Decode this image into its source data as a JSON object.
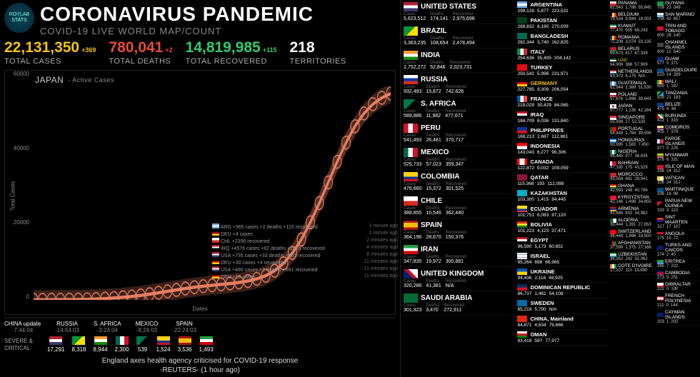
{
  "logo_text": "ROYLAB STATS",
  "title": "CORONAVIRUS PANDEMIC",
  "subtitle": "COVID-19 LIVE WORLD MAP/COUNT",
  "colors": {
    "cases": "#f1c40f",
    "deaths": "#e74c3c",
    "recovered": "#2ecc71",
    "territories": "#ffffff",
    "chart_accent": "#e67e63",
    "bg": "#000000",
    "text": "#ffffff",
    "muted": "#888888"
  },
  "stats": {
    "cases": {
      "value": "22,131,350",
      "delta": "+369",
      "label": "TOTAL CASES"
    },
    "deaths": {
      "value": "780,041",
      "delta": "+2",
      "label": "TOTAL DEATHS"
    },
    "recovered": {
      "value": "14,819,985",
      "delta": "+115",
      "label": "TOTAL RECOVERED"
    },
    "territories": {
      "value": "218",
      "delta": "",
      "label": "TERRITORIES"
    }
  },
  "chart": {
    "type": "line",
    "title": "JAPAN",
    "subtitle": "- Active Cases",
    "xlabel": "Dates",
    "ylabel": "Total Cases",
    "ylim": [
      0,
      60000
    ],
    "yticks": [
      0,
      20000,
      40000,
      60000
    ],
    "line_color": "#e67e63",
    "marker": "o",
    "marker_size": 6,
    "line_width": 3,
    "background": "#0a0a0a",
    "x": [
      0,
      5,
      10,
      15,
      20,
      25,
      30,
      35,
      40,
      45,
      50,
      55,
      60,
      65,
      70,
      75,
      80,
      85,
      90,
      95,
      100,
      105,
      110,
      115,
      120,
      125,
      130,
      135,
      140,
      145,
      150,
      155,
      160,
      165,
      170,
      175,
      180,
      185,
      190,
      195,
      200
    ],
    "y": [
      20,
      30,
      45,
      60,
      80,
      110,
      160,
      240,
      360,
      520,
      720,
      960,
      1250,
      1600,
      2000,
      2400,
      2800,
      3200,
      3550,
      3850,
      4100,
      4350,
      4600,
      4900,
      5300,
      5900,
      6800,
      8200,
      10300,
      13200,
      17000,
      21800,
      27200,
      33000,
      38800,
      44200,
      48800,
      52400,
      55000,
      56800,
      58000
    ]
  },
  "updates": [
    {
      "c": "CHINA update",
      "t": "-7:44:04"
    },
    {
      "c": "RUSSIA",
      "t": "-14:54:03"
    },
    {
      "c": "S. AFRICA",
      "t": "-3:24:04"
    },
    {
      "c": "MEXICO",
      "t": "-8:24:03"
    },
    {
      "c": "SPAIN",
      "t": "-22:24:03"
    }
  ],
  "severe_label": "SEVERE & CRITICAL",
  "severe": [
    {
      "flag": "f-us",
      "n": "17,291"
    },
    {
      "flag": "f-br",
      "n": "8,318"
    },
    {
      "flag": "f-in",
      "n": "8,944"
    },
    {
      "flag": "f-mx",
      "n": "2,300"
    },
    {
      "flag": "f-za",
      "n": "539"
    },
    {
      "flag": "f-co",
      "n": "1,524"
    },
    {
      "flag": "f-es",
      "n": "3,536"
    },
    {
      "flag": "f-ir",
      "n": "1,493"
    }
  ],
  "liveFeed": [
    {
      "flag": "f-ar",
      "t": "ARG +365 cases +2 deaths +115 recovered",
      "ago": "1 minute ago"
    },
    {
      "flag": "f-de",
      "t": "DEU +4 cases",
      "ago": "1 minute ago"
    },
    {
      "flag": "f-cl",
      "t": "CHL +2356 recovered",
      "ago": "2 minutes ago"
    },
    {
      "flag": "f-iq",
      "t": "IRQ +4576 cases +82 deaths +2819 recovered",
      "ago": "4 minutes ago"
    },
    {
      "flag": "f-us",
      "t": "USA +795 cases +33 deaths +861 recovered",
      "ago": "8 minutes ago"
    },
    {
      "flag": "f-de",
      "t": "DEU +30 cases +4 recovered",
      "ago": "11 minutes ago"
    },
    {
      "flag": "f-us",
      "t": "USA +480 cases +2 deaths +861 recovered",
      "ago": "11 minutes ago"
    },
    {
      "flag": "f-de",
      "t": "DEU +16 cases",
      "ago": "11 minutes ago"
    }
  ],
  "news": {
    "headline": "England axes health agency criticised for COVID-19 response",
    "source": "-REUTERS- (1 hour ago)"
  },
  "headersCompact": [
    "Cases",
    "Deaths",
    "Recovered"
  ],
  "col1": [
    {
      "flag": "f-us",
      "name": "UNITED STATES",
      "c": "5,623,512",
      "d": "174,141",
      "r": "2,975,698"
    },
    {
      "flag": "f-br",
      "name": "BRAZIL",
      "c": "3,363,235",
      "d": "108,654",
      "r": "2,478,494"
    },
    {
      "flag": "f-in",
      "name": "INDIA",
      "c": "2,752,272",
      "d": "52,846",
      "r": "2,023,731"
    },
    {
      "flag": "f-ru",
      "name": "RUSSIA",
      "c": "932,493",
      "d": "15,872",
      "r": "742,628"
    },
    {
      "flag": "f-za",
      "name": "S. AFRICA",
      "c": "589,886",
      "d": "11,982",
      "r": "477,671"
    },
    {
      "flag": "f-pe",
      "name": "PERU",
      "c": "541,493",
      "d": "26,481",
      "r": "370,717"
    },
    {
      "flag": "f-mx",
      "name": "MEXICO",
      "c": "525,733",
      "d": "57,023",
      "r": "359,347"
    },
    {
      "flag": "f-co",
      "name": "COLOMBIA",
      "c": "476,660",
      "d": "15,372",
      "r": "301,525"
    },
    {
      "flag": "f-cl",
      "name": "CHILE",
      "c": "388,855",
      "d": "10,546",
      "r": "362,440"
    },
    {
      "flag": "f-es",
      "name": "SPAIN",
      "c": "364,196",
      "d": "28,670",
      "r": "150,376"
    },
    {
      "flag": "f-ir",
      "name": "IRAN",
      "c": "347,835",
      "d": "19,972",
      "r": "300,881"
    },
    {
      "flag": "f-gb",
      "name": "UNITED KINGDOM",
      "c": "320,286",
      "d": "41,381",
      "r": "N/A"
    },
    {
      "flag": "f-sa",
      "name": "SAUDI ARABIA",
      "c": "301,323",
      "d": "3,470",
      "r": "272,911"
    }
  ],
  "col2": [
    {
      "flag": "f-ar",
      "name": "ARGENTINA",
      "c": "299,126",
      "d": "5,877",
      "r": "223,531"
    },
    {
      "flag": "f-pk",
      "name": "PAKISTAN",
      "c": "289,832",
      "d": "6,190",
      "r": "270,009"
    },
    {
      "flag": "f-bd",
      "name": "BANGLADESH",
      "c": "282,344",
      "d": "3,740",
      "r": "162,825"
    },
    {
      "flag": "f-it",
      "name": "ITALY",
      "c": "254,636",
      "d": "35,405",
      "r": "204,142"
    },
    {
      "flag": "f-tr",
      "name": "TURKEY",
      "c": "250,542",
      "d": "5,996",
      "r": "231,971"
    },
    {
      "flag": "f-de",
      "name": "GERMANY",
      "c": "227,785",
      "d": "9,309",
      "r": "206,054",
      "hi": true
    },
    {
      "flag": "f-fr",
      "name": "FRANCE",
      "c": "219,029",
      "d": "30,429",
      "r": "84,065"
    },
    {
      "flag": "f-iq",
      "name": "IRAQ",
      "c": "184,709",
      "d": "6,036",
      "r": "131,840"
    },
    {
      "flag": "f-ph",
      "name": "PHILIPPINES",
      "c": "169,213",
      "d": "2,687",
      "r": "112,861"
    },
    {
      "flag": "f-id",
      "name": "INDONESIA",
      "c": "143,043",
      "d": "6,277",
      "r": "96,306"
    },
    {
      "flag": "f-ca",
      "name": "CANADA",
      "c": "122,872",
      "d": "9,032",
      "r": "109,059"
    },
    {
      "flag": "f-qa",
      "name": "QATAR",
      "c": "115,368",
      "d": "193",
      "r": "112,088"
    },
    {
      "flag": "f-kz",
      "name": "KAZAKHSTAN",
      "c": "103,300",
      "d": "1,415",
      "r": "84,445"
    },
    {
      "flag": "f-ec",
      "name": "ECUADOR",
      "c": "101,751",
      "d": "6,083",
      "r": "87,120"
    },
    {
      "flag": "f-bo",
      "name": "BOLIVIA",
      "c": "101,223",
      "d": "4,123",
      "r": "37,471"
    },
    {
      "flag": "f-eg",
      "name": "EGYPT",
      "c": "96,590",
      "d": "5,173",
      "r": "60,651"
    },
    {
      "flag": "f-il",
      "name": "ISRAEL",
      "c": "95,264",
      "d": "698",
      "r": "66,965"
    },
    {
      "flag": "f-ua",
      "name": "UKRAINE",
      "c": "94,436",
      "d": "2,116",
      "r": "48,925"
    },
    {
      "flag": "f-do",
      "name": "DOMINICAN REPUBLIC",
      "c": "86,737",
      "d": "1,481",
      "r": "54,108"
    },
    {
      "flag": "f-se",
      "name": "SWEDEN",
      "c": "85,219",
      "d": "5,790",
      "r": "N/A"
    },
    {
      "flag": "f-cn",
      "name": "CHINA, Mainland",
      "c": "84,871",
      "d": "4,634",
      "r": "79,666"
    },
    {
      "flag": "f-om",
      "name": "OMAN",
      "c": "83,418",
      "d": "597",
      "r": "77,977"
    }
  ],
  "col3a": [
    {
      "flag": "f-pa",
      "name": "PANAMA",
      "c": "82,543",
      "d": "1,788",
      "r": "55,845"
    },
    {
      "flag": "f-be",
      "name": "BELGIUM",
      "c": "78,534",
      "d": "9,944",
      "r": "18,003"
    },
    {
      "flag": "f-kw",
      "name": "KUWAIT",
      "c": "77,470",
      "d": "505",
      "r": "69,243"
    },
    {
      "flag": "f-ro",
      "name": "ROMANIA",
      "c": "72,208",
      "d": "3,074",
      "r": "33,135"
    },
    {
      "flag": "f-by",
      "name": "BELARUS",
      "c": "69,673",
      "d": "617",
      "r": "67,339"
    },
    {
      "flag": "f-ae",
      "name": "UAE",
      "c": "54,906",
      "d": "366",
      "r": "57,909",
      "hi": true
    },
    {
      "flag": "f-nl",
      "name": "NETHERLANDS",
      "c": "63,973",
      "d": "6,175",
      "r": "N/A"
    },
    {
      "flag": "f-gt",
      "name": "GUATEMALA",
      "c": "62,944",
      "d": "2,389",
      "r": "51,530"
    },
    {
      "flag": "f-pl",
      "name": "POLAND",
      "c": "57,876",
      "d": "1,896",
      "r": "39,643"
    },
    {
      "flag": "f-jp",
      "name": "JAPAN",
      "c": "57,777",
      "d": "1,135",
      "r": "42,284"
    },
    {
      "flag": "f-sg",
      "name": "SINGAPORE",
      "c": "55,938",
      "d": "27",
      "r": "52,533"
    },
    {
      "flag": "f-pt",
      "name": "PORTUGAL",
      "c": "54,448",
      "d": "1,784",
      "r": "39,936"
    },
    {
      "flag": "f-hn",
      "name": "HONDURAS",
      "c": "50,995",
      "d": "1,583",
      "r": "7,450"
    },
    {
      "flag": "f-ng",
      "name": "NIGERIA",
      "c": "49,485",
      "d": "977",
      "r": "36,834"
    },
    {
      "flag": "f-bh",
      "name": "BAHRAIN",
      "c": "47,185",
      "d": "175",
      "r": "43,529"
    },
    {
      "flag": "f-ma",
      "name": "MOROCCO",
      "c": "43,558",
      "d": "681",
      "r": "29,941"
    },
    {
      "flag": "f-gh",
      "name": "GHANA",
      "c": "42,993",
      "d": "248",
      "r": "40,796"
    },
    {
      "flag": "f-kg",
      "name": "KYRGYZSTAN",
      "c": "42,146",
      "d": "1,498",
      "r": "34,855"
    },
    {
      "flag": "f-am",
      "name": "ARMENIA",
      "c": "41,846",
      "d": "832",
      "r": "34,982"
    },
    {
      "flag": "f-dz",
      "name": "ALGERIA",
      "c": "39,444",
      "d": "1,391",
      "r": "27,653"
    },
    {
      "flag": "f-ch",
      "name": "SWITZERLAND",
      "c": "38,449",
      "d": "1,996",
      "r": "33,500"
    },
    {
      "flag": "f-af",
      "name": "AFGHANISTAN",
      "c": "37,599",
      "d": "1,375",
      "r": "27,166"
    },
    {
      "flag": "f-uz",
      "name": "UZBEKISTAN",
      "c": "36,352",
      "d": "242",
      "r": "32,062"
    },
    {
      "flag": "f-ci",
      "name": "COTE D'IVOIRE",
      "c": "17,107",
      "d": "110",
      "r": "13,990"
    }
  ],
  "col3b": [
    {
      "flag": "f-gy",
      "name": "GUYANA",
      "c": "709",
      "d": "23",
      "r": "349"
    },
    {
      "flag": "f-sm",
      "name": "SAN MARINO",
      "c": "704",
      "d": "42",
      "r": "657"
    },
    {
      "flag": "f-tt",
      "name": "TRIN AND TOBAGO",
      "c": "600",
      "d": "28",
      "r": "140"
    },
    {
      "flag": "",
      "name": "CHANNEL ISLANDS",
      "c": "600",
      "d": "12",
      "r": "540"
    },
    {
      "flag": "f-gu",
      "name": "GUAM",
      "c": "577",
      "d": "5",
      "r": "371"
    },
    {
      "flag": "f-gp",
      "name": "GUADELOUPE",
      "c": "510",
      "d": "14",
      "r": "289"
    },
    {
      "flag": "f-ml",
      "name": "MALI",
      "c": "500",
      "d": "1",
      "r": "187"
    },
    {
      "flag": "f-tz",
      "name": "TANZANIA",
      "c": "509",
      "d": "21",
      "r": "183"
    },
    {
      "flag": "f-bz",
      "name": "BELIZE",
      "c": "475",
      "d": "4",
      "r": "38"
    },
    {
      "flag": "f-bi",
      "name": "BURUNDI",
      "c": "413",
      "d": "1",
      "r": "315"
    },
    {
      "flag": "f-km",
      "name": "COMOROS",
      "c": "405",
      "d": "7",
      "r": "379"
    },
    {
      "flag": "f-fo",
      "name": "FAROE ISLANDS",
      "c": "377",
      "d": "0",
      "r": "225"
    },
    {
      "flag": "f-mm",
      "name": "MYANMAR",
      "c": "376",
      "d": "6",
      "r": "331"
    },
    {
      "flag": "f-im",
      "name": "ISLE OF MAN",
      "c": "336",
      "d": "24",
      "r": "312"
    },
    {
      "flag": "f-va",
      "name": "VATICAN",
      "c": "336",
      "d": "24",
      "r": "312"
    },
    {
      "flag": "f-mq",
      "name": "MARTINIQUE",
      "c": "336",
      "d": "16",
      "r": "98"
    },
    {
      "flag": "f-pg",
      "name": "PAPUA NEW GUINEA",
      "c": "333",
      "d": "3",
      "r": "110"
    },
    {
      "flag": "f-sx",
      "name": "SINT MAARTEN",
      "c": "317",
      "d": "17",
      "r": "107"
    },
    {
      "flag": "f-ao",
      "name": "ANGOLA",
      "c": "275",
      "d": "15",
      "r": "72"
    },
    {
      "flag": "f-tc",
      "name": "TURKS AND CAICOS",
      "c": "274",
      "d": "2",
      "r": "40"
    },
    {
      "flag": "f-er",
      "name": "ERITREA",
      "c": "285",
      "d": "7",
      "r": "222"
    },
    {
      "flag": "f-kh",
      "name": "CAMBODIA",
      "c": "273",
      "d": "0",
      "r": "251"
    },
    {
      "flag": "f-gi",
      "name": "GIBRALTAR",
      "c": "222",
      "d": "0",
      "r": "190"
    },
    {
      "flag": "f-pf",
      "name": "FRENCH POLYNESIA",
      "c": "211",
      "d": "0",
      "r": "144"
    },
    {
      "flag": "f-ky",
      "name": "CAYMAN ISLANDS",
      "c": "203",
      "d": "1",
      "r": "202"
    }
  ]
}
